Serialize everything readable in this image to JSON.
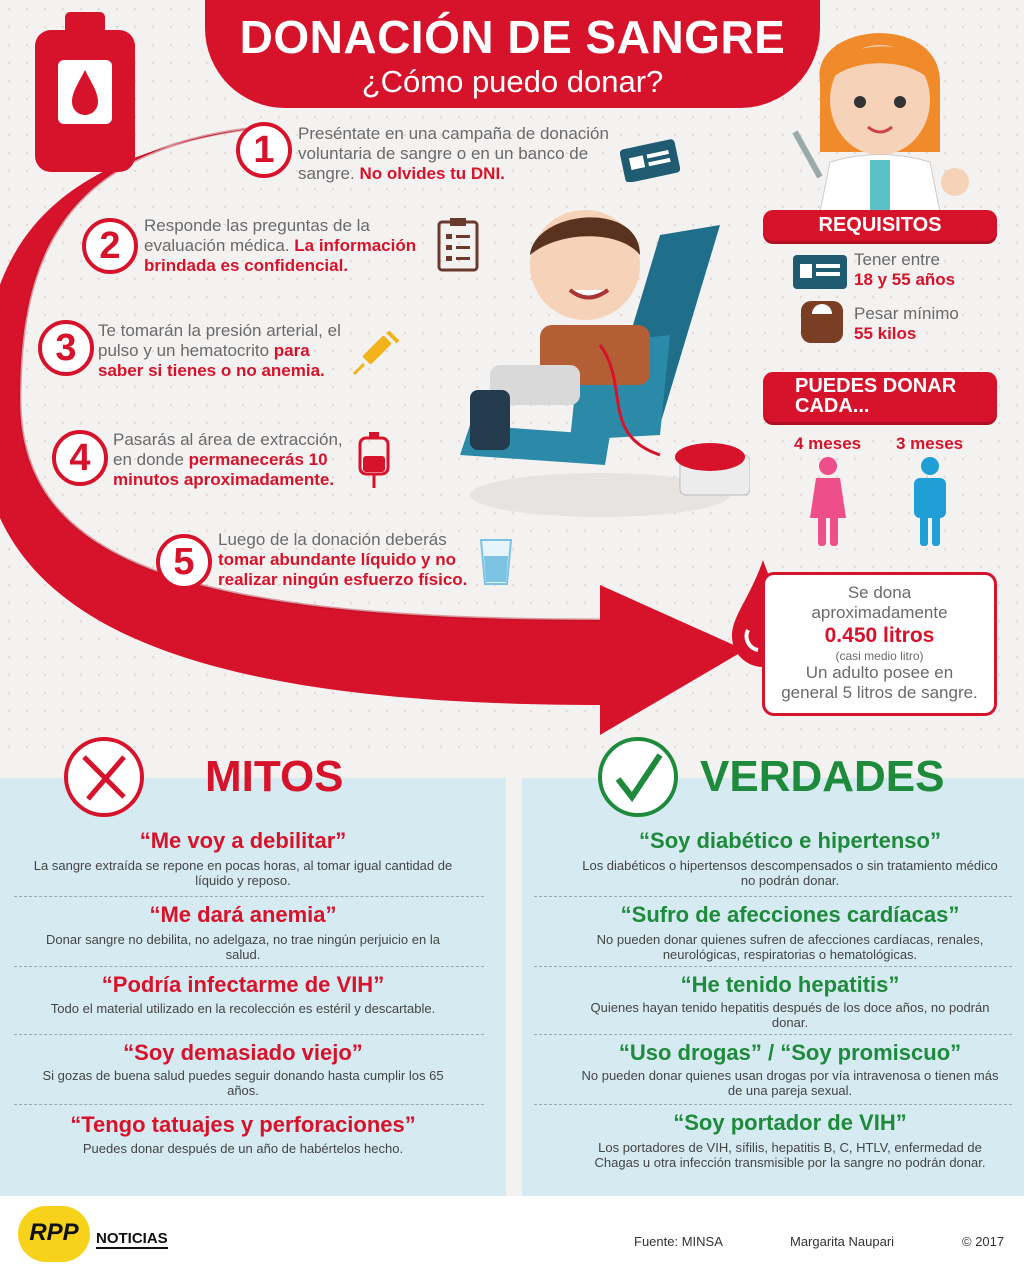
{
  "header": {
    "title": "DONACIÓN DE SANGRE",
    "subtitle": "¿Cómo puedo donar?"
  },
  "steps": [
    {
      "num": "1",
      "text": "Preséntate en una campaña de donación voluntaria de sangre o en un banco de sangre.",
      "highlight": "No olvides tu DNI.",
      "icon": "id-card-icon"
    },
    {
      "num": "2",
      "text": "Responde las preguntas de la evaluación médica.",
      "highlight": "La información brindada es confidencial.",
      "icon": "clipboard-icon"
    },
    {
      "num": "3",
      "text": "Te tomarán la presión arterial, el pulso y un hematocrito",
      "highlight": "para saber si tienes o no anemia.",
      "icon": "syringe-icon"
    },
    {
      "num": "4",
      "text": "Pasarás al área de extracción, en donde",
      "highlight": "permanecerás 10 minutos aproximadamente.",
      "icon": "blood-bag-icon"
    },
    {
      "num": "5",
      "text": "Luego de la donación deberás",
      "highlight": "tomar abundante líquido y no realizar ningún esfuerzo físico.",
      "icon": "water-glass-icon"
    }
  ],
  "requirements": {
    "title": "REQUISITOS",
    "age_label": "Tener entre",
    "age_value": "18 y 55 años",
    "weight_label": "Pesar mínimo",
    "weight_value": "55 kilos"
  },
  "frequency": {
    "title_line1": "PUEDES DONAR",
    "title_line2": "CADA...",
    "female": "4 meses",
    "male": "3 meses",
    "female_color": "#ee4f8b",
    "male_color": "#1f9fd6"
  },
  "volume": {
    "line1": "Se dona",
    "line2": "aproximadamente",
    "amount": "0.450 litros",
    "note": "(casi medio litro)",
    "line3": "Un adulto posee en",
    "line4": "general 5 litros de sangre."
  },
  "myths": {
    "heading": "MITOS",
    "items": [
      {
        "title": "“Me voy a debilitar”",
        "desc": "La sangre extraída se repone en pocas horas, al tomar igual cantidad de líquido y reposo."
      },
      {
        "title": "“Me dará anemia”",
        "desc": "Donar sangre no debilita, no adelgaza, no trae ningún perjuicio en la salud."
      },
      {
        "title": "“Podría infectarme de VIH”",
        "desc": "Todo el material utilizado en la recolección es estéril y descartable."
      },
      {
        "title": "“Soy demasiado viejo”",
        "desc": "Si gozas de buena salud puedes seguir donando hasta cumplir los 65 años."
      },
      {
        "title": "“Tengo tatuajes y perforaciones”",
        "desc": "Puedes donar después de un año de habértelos hecho."
      }
    ]
  },
  "truths": {
    "heading": "VERDADES",
    "items": [
      {
        "title": "“Soy diabético e hipertenso”",
        "desc": "Los diabéticos o hipertensos descompensados o sin tratamiento médico no podrán donar."
      },
      {
        "title": "“Sufro de afecciones cardíacas”",
        "desc": "No pueden donar quienes sufren de afecciones cardíacas, renales, neurológicas, respiratorias o hematológicas."
      },
      {
        "title": "“He tenido hepatitis”",
        "desc": "Quienes hayan tenido hepatitis después de los doce años, no podrán donar."
      },
      {
        "title": "“Uso drogas” / “Soy promiscuo”",
        "desc": "No pueden donar quienes usan drogas por vía intravenosa o tienen más de una pareja sexual."
      },
      {
        "title": "“Soy portador de VIH”",
        "desc": "Los portadores de VIH, sífilis, hepatitis B, C, HTLV, enfermedad de Chagas u otra infección transmisible por la sangre no podrán donar."
      }
    ]
  },
  "footer": {
    "logo": "RPP",
    "brand": "NOTICIAS",
    "source": "Fuente: MINSA",
    "author": "Margarita Naupari",
    "copyright": "© 2017"
  },
  "colors": {
    "red": "#d7132b",
    "green": "#1e8a3c",
    "panel": "#d5eaf1"
  }
}
